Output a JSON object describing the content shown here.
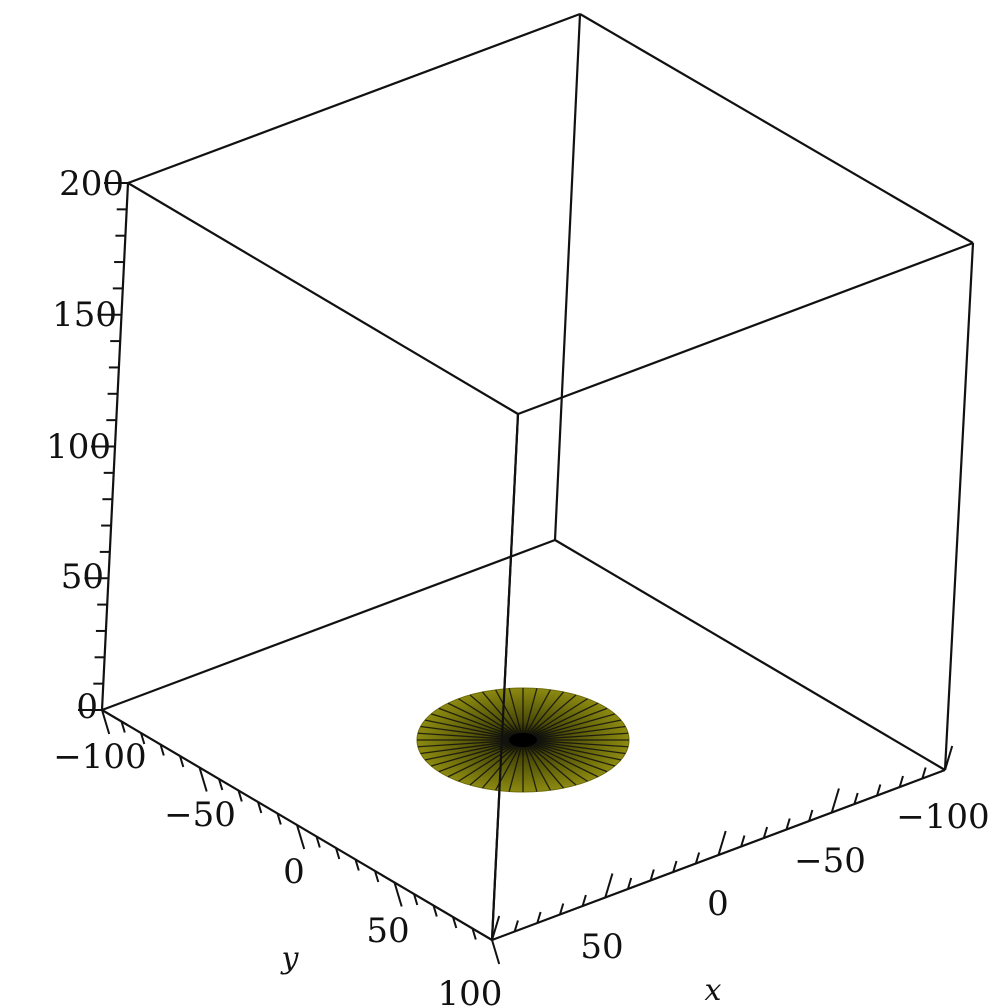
{
  "chart_data": {
    "type": "surface3d",
    "title": "",
    "xlabel": "x",
    "ylabel": "y",
    "zlabel": "",
    "xlim": [
      -100,
      100
    ],
    "ylim": [
      -100,
      100
    ],
    "zlim": [
      0,
      200
    ],
    "x_ticks": [
      -100,
      -50,
      0,
      50,
      100
    ],
    "y_ticks": [
      -100,
      -50,
      0,
      50,
      100
    ],
    "z_ticks": [
      0,
      50,
      100,
      150,
      200
    ],
    "x_tick_labels": [
      "−100",
      "−50",
      "0",
      "50",
      ""
    ],
    "y_tick_labels": [
      "−100",
      "−50",
      "0",
      "50",
      "100"
    ],
    "z_tick_labels": [
      "0",
      "50",
      "100",
      "150",
      "200"
    ],
    "box": true,
    "surface": {
      "shape": "disk",
      "center": {
        "x": 0,
        "y": 0,
        "z": 0
      },
      "radius": 50,
      "radial_lines": 48,
      "color_rim": "#8c8a10",
      "color_center": "#000000"
    }
  }
}
